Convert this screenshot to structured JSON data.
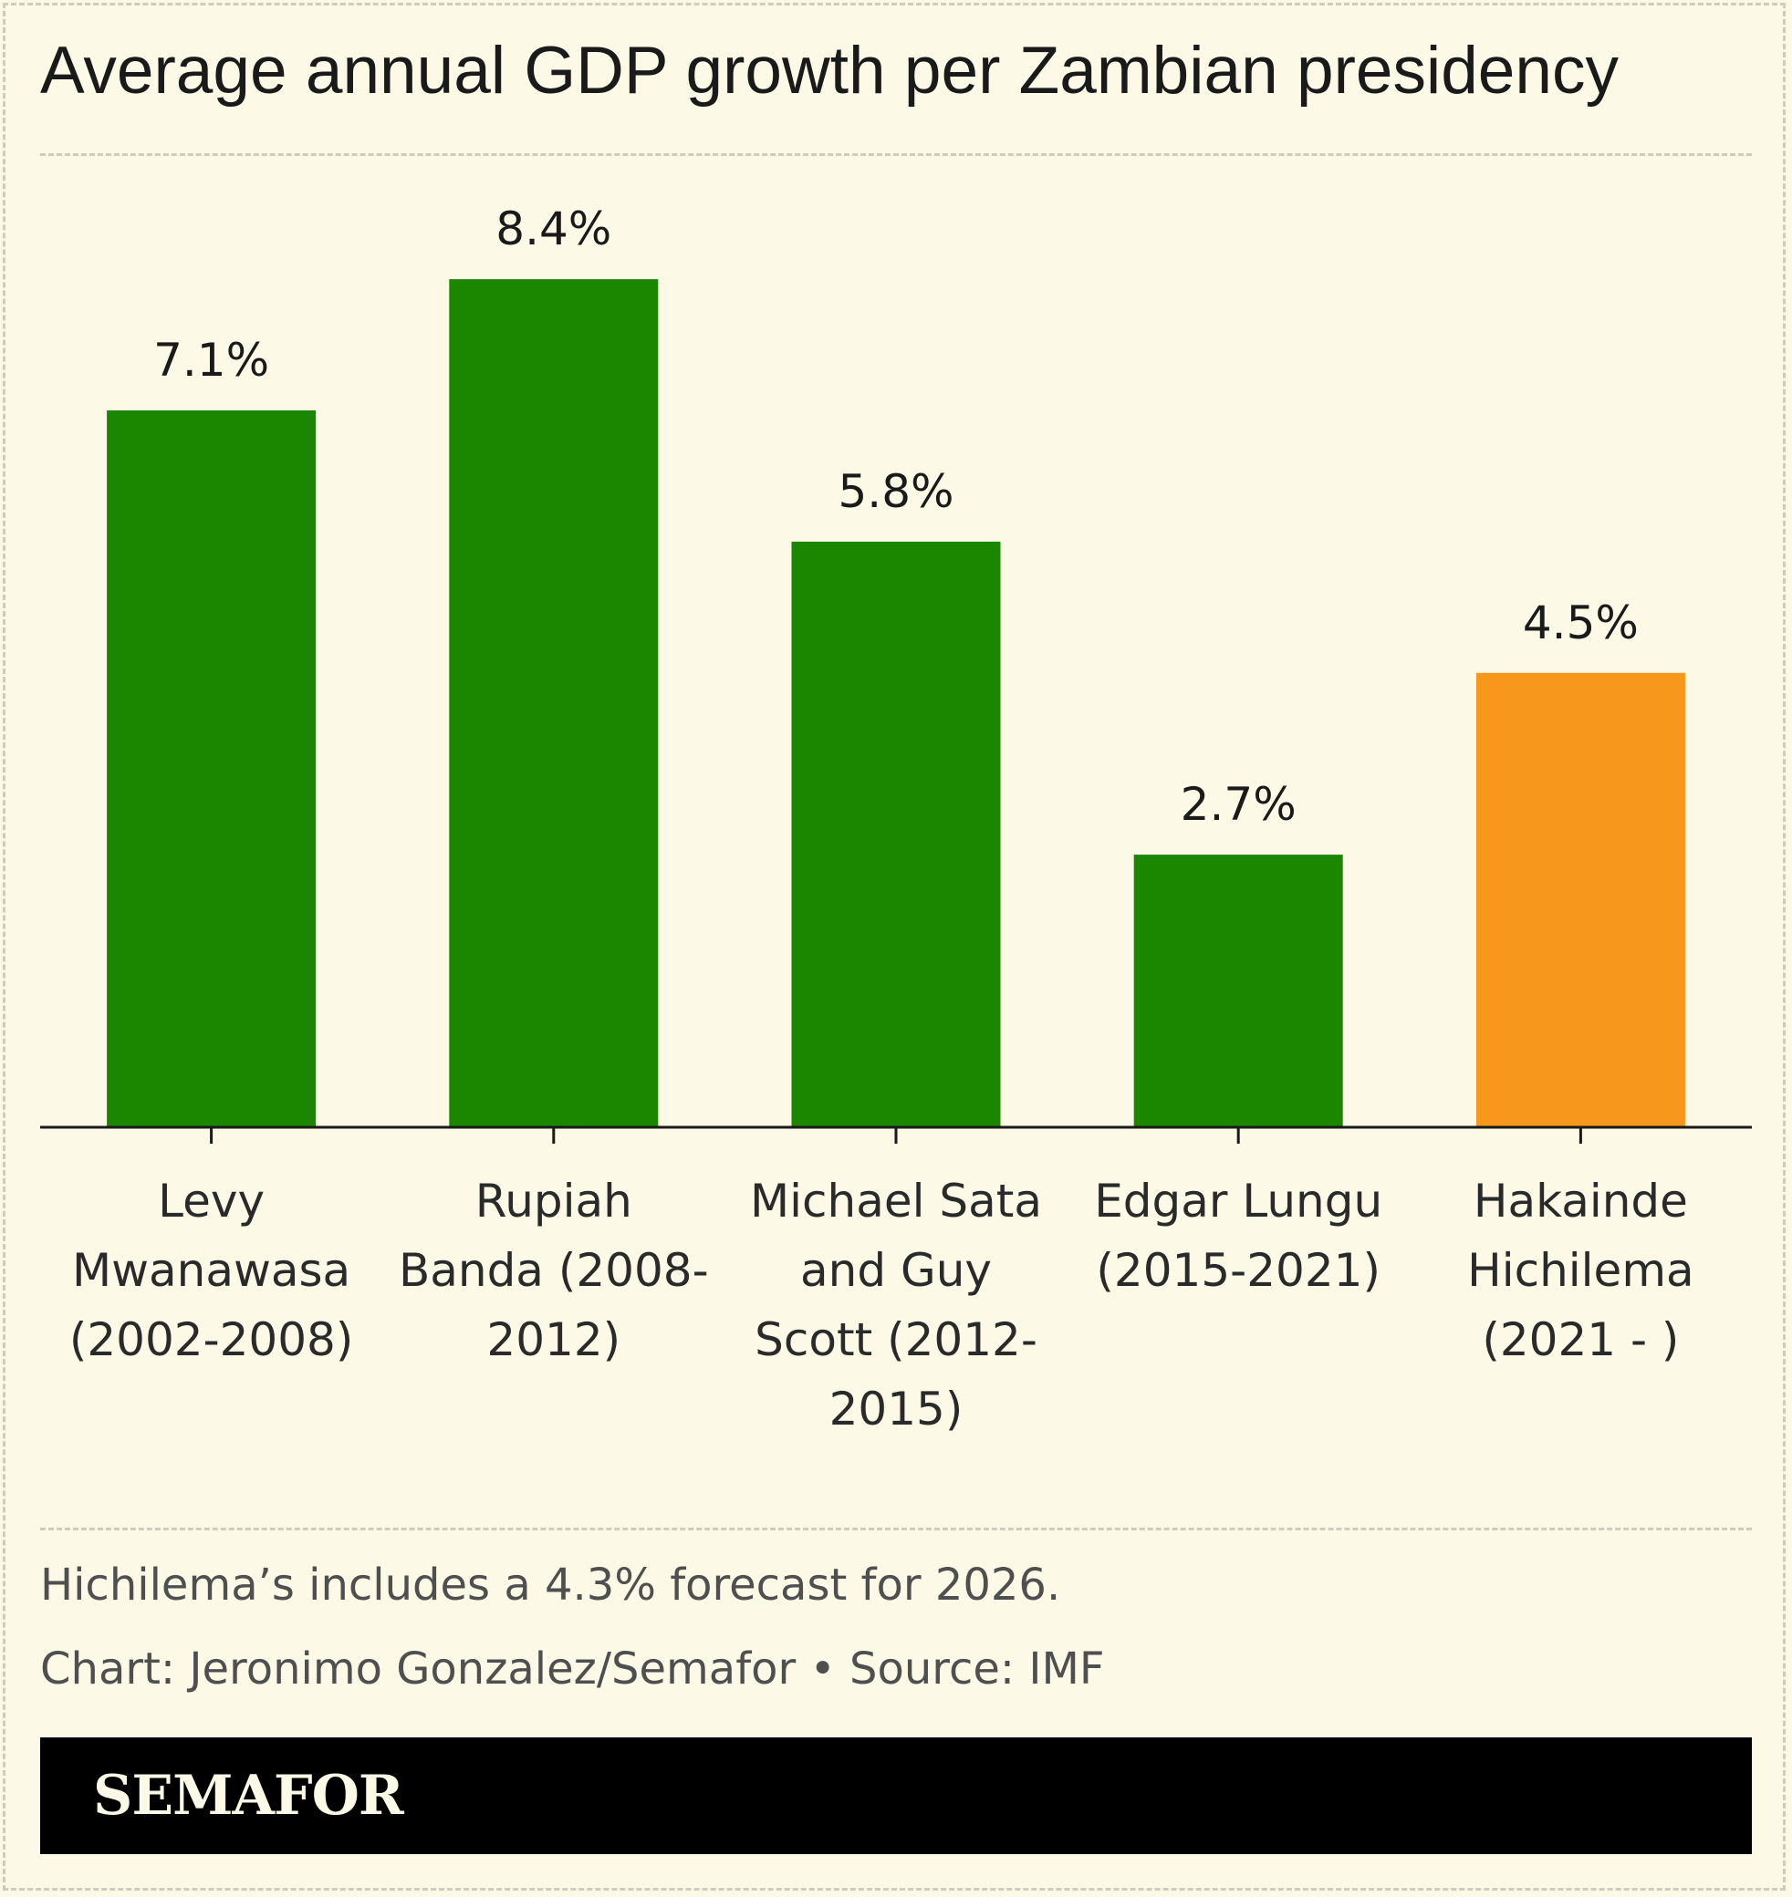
{
  "chart_data": {
    "type": "bar",
    "title": "Average annual GDP growth per Zambian presidency",
    "xlabel": "",
    "ylabel": "",
    "ylim": [
      0,
      9
    ],
    "grid": false,
    "categories": [
      "Levy Mwanawasa (2002-2008)",
      "Rupiah Banda (2008-2012)",
      "Michael Sata and Guy Scott (2012-2015)",
      "Edgar Lungu (2015-2021)",
      "Hakainde Hichilema (2021 - )"
    ],
    "category_label_lines": [
      [
        "Levy",
        "Mwanawasa",
        "(2002-2008)"
      ],
      [
        "Rupiah",
        "Banda (2008-",
        "2012)"
      ],
      [
        "Michael Sata",
        "and Guy",
        "Scott (2012-",
        "2015)"
      ],
      [
        "Edgar Lungu",
        "(2015-2021)"
      ],
      [
        "Hakainde",
        "Hichilema",
        "(2021 - )"
      ]
    ],
    "values": [
      7.1,
      8.4,
      5.8,
      2.7,
      4.5
    ],
    "value_labels": [
      "7.1%",
      "8.4%",
      "5.8%",
      "2.7%",
      "4.5%"
    ],
    "bar_colors": [
      "#1b8700",
      "#1b8700",
      "#1b8700",
      "#1b8700",
      "#f7981c"
    ],
    "axis_color": "#1a1a1a"
  },
  "footer": {
    "note": "Hichilema’s includes a 4.3% forecast for 2026.",
    "credit": "Chart: Jeronimo Gonzalez/Semafor • Source: IMF",
    "brand": "SEMAFOR"
  }
}
